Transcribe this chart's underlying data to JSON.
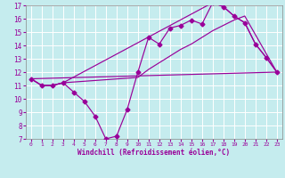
{
  "xlabel": "Windchill (Refroidissement éolien,°C)",
  "xlim": [
    -0.5,
    23.5
  ],
  "ylim": [
    7,
    17
  ],
  "xticks": [
    0,
    1,
    2,
    3,
    4,
    5,
    6,
    7,
    8,
    9,
    10,
    11,
    12,
    13,
    14,
    15,
    16,
    17,
    18,
    19,
    20,
    21,
    22,
    23
  ],
  "yticks": [
    7,
    8,
    9,
    10,
    11,
    12,
    13,
    14,
    15,
    16,
    17
  ],
  "bg_color": "#c5ecee",
  "line_color": "#990099",
  "grid_color": "#aad8dc",
  "line1_x": [
    0,
    1,
    2,
    3,
    4,
    5,
    6,
    7,
    8,
    9,
    10,
    11,
    12,
    13,
    14,
    15,
    16,
    17,
    18,
    19,
    20,
    21,
    22,
    23
  ],
  "line1_y": [
    11.5,
    11.0,
    11.0,
    11.2,
    10.5,
    9.8,
    8.7,
    7.0,
    7.2,
    9.2,
    12.0,
    14.6,
    14.1,
    15.3,
    15.5,
    15.9,
    15.6,
    17.2,
    16.9,
    16.2,
    15.7,
    14.1,
    13.1,
    12.0
  ],
  "line2_x": [
    0,
    1,
    2,
    3,
    10,
    11,
    12,
    13,
    14,
    15,
    16,
    17,
    18,
    19,
    20,
    23
  ],
  "line2_y": [
    11.5,
    11.0,
    11.0,
    11.2,
    11.6,
    12.2,
    12.7,
    13.2,
    13.7,
    14.1,
    14.6,
    15.1,
    15.5,
    15.9,
    16.2,
    12.0
  ],
  "line3_x": [
    0,
    23
  ],
  "line3_y": [
    11.5,
    12.0
  ],
  "line4_x": [
    0,
    1,
    2,
    3,
    17,
    18,
    19,
    20,
    21,
    22,
    23
  ],
  "line4_y": [
    11.5,
    11.0,
    11.0,
    11.2,
    17.2,
    16.9,
    16.2,
    15.7,
    14.1,
    13.1,
    12.0
  ]
}
